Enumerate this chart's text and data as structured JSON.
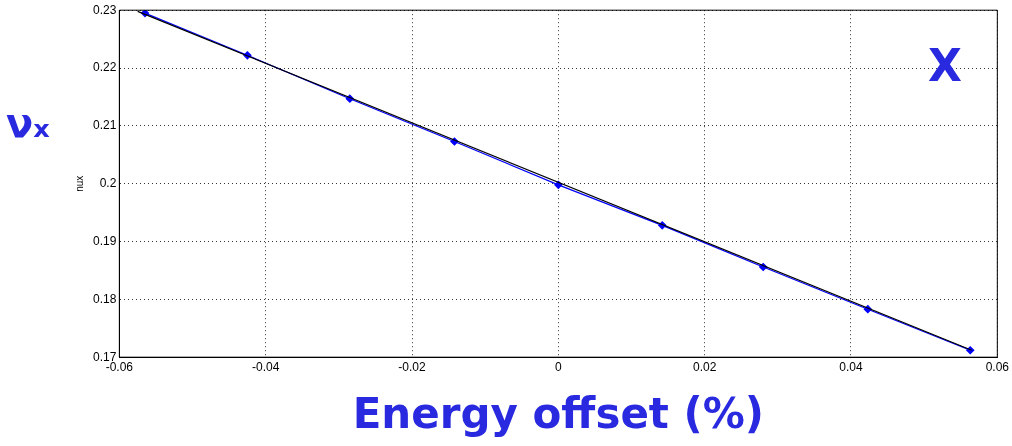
{
  "chart_data": {
    "type": "line",
    "xlabel": "Energy offset (%)",
    "ylabel": "nux",
    "annotations": [
      "νₓ",
      "X"
    ],
    "xlim": [
      -0.06,
      0.06
    ],
    "xticks": [
      -0.06,
      -0.04,
      -0.02,
      0,
      0.02,
      0.04,
      0.06
    ],
    "ylim": [
      0.17,
      0.23
    ],
    "yticks": [
      0.17,
      0.18,
      0.19,
      0.2,
      0.21,
      0.22,
      0.23
    ],
    "grid": true,
    "legend": false,
    "line_style": "solid",
    "series": [
      {
        "color": "#0000ff",
        "marker": "diamond",
        "x": [
          -0.0565,
          -0.0425,
          -0.0285,
          -0.0142,
          0,
          0.0142,
          0.028,
          0.0423,
          0.0563
        ],
        "values": [
          0.2295,
          0.2222,
          0.2147,
          0.2073,
          0.1998,
          0.1928,
          0.1856,
          0.1783,
          0.1712
        ]
      },
      {
        "color": "#000000",
        "marker": "none",
        "x": [
          -0.0575,
          0.0565
        ],
        "values": [
          0.2298,
          0.1712
        ]
      }
    ]
  }
}
